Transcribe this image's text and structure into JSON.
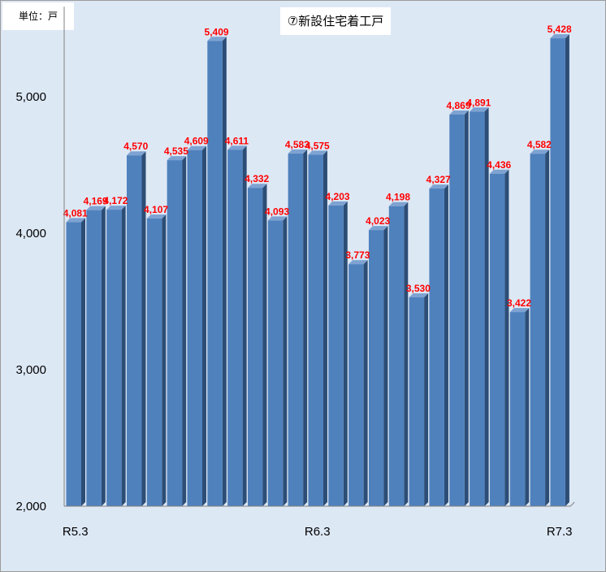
{
  "unit_label": "単位：戸",
  "chart_data": {
    "type": "bar",
    "title": "⑦新設住宅着工戸",
    "categories": [
      "R5.3",
      "",
      "",
      "",
      "",
      "",
      "",
      "",
      "",
      "",
      "",
      "",
      "R6.3",
      "",
      "",
      "",
      "",
      "",
      "",
      "",
      "",
      "",
      "",
      "",
      "R7.3"
    ],
    "x_tick_labels": [
      "R5.3",
      "R6.3",
      "R7.3"
    ],
    "values": [
      4081,
      4169,
      4172,
      4570,
      4107,
      4535,
      4609,
      5409,
      4611,
      4332,
      4093,
      4583,
      4575,
      4203,
      3773,
      4023,
      4198,
      3530,
      4327,
      4869,
      4891,
      4436,
      3422,
      4582,
      5428
    ],
    "data_labels": [
      "4,081",
      "4,169",
      "4,172",
      "4,570",
      "4,107",
      "4,535",
      "4,609",
      "5,409",
      "4,611",
      "4,332",
      "4,093",
      "4,583",
      "4,575",
      "4,203",
      "3,773",
      "4,023",
      "4,198",
      "3,530",
      "4,327",
      "4,869",
      "4,891",
      "4,436",
      "3,422",
      "4,582",
      "5,428"
    ],
    "y_tick_labels": [
      "2,000",
      "3,000",
      "4,000",
      "5,000"
    ],
    "ylim": [
      2000,
      5600
    ],
    "grid": false,
    "legend": "none",
    "bar_color": "#4f81bd",
    "bar_side_color": "#2c4d75",
    "bar_top_color": "#7ea3d2",
    "label_color": "#ff0000",
    "background_color": "#dde8f5"
  }
}
